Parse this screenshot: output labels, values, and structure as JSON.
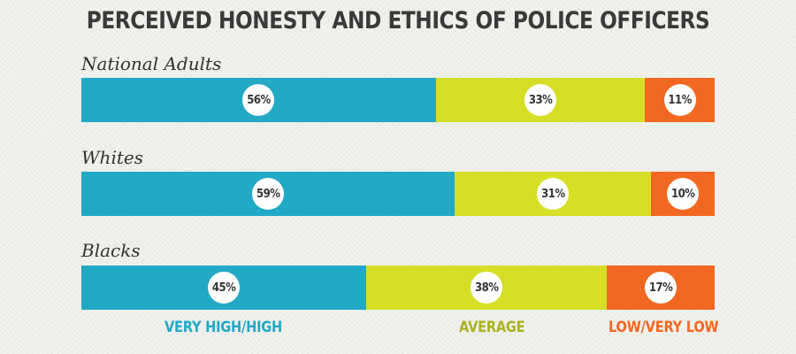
{
  "chart_data": {
    "type": "bar",
    "orientation": "horizontal",
    "stacked": true,
    "title": "PERCEIVED HONESTY AND ETHICS OF POLICE OFFICERS",
    "categories": [
      "National Adults",
      "Whites",
      "Blacks"
    ],
    "series": [
      {
        "name": "VERY HIGH/HIGH",
        "values": [
          56,
          59,
          45
        ],
        "labels": [
          "56%",
          "59%",
          "45%"
        ],
        "color": "#22a9c5"
      },
      {
        "name": "AVERAGE",
        "values": [
          33,
          31,
          38
        ],
        "labels": [
          "33%",
          "31%",
          "38%"
        ],
        "color": "#d5df26"
      },
      {
        "name": "LOW/VERY LOW",
        "values": [
          11,
          10,
          17
        ],
        "labels": [
          "11%",
          "10%",
          "17%"
        ],
        "color": "#f26822"
      }
    ],
    "legend_colors": [
      "#22a9c5",
      "#a9b41e",
      "#f26822"
    ],
    "legend_position": "bottom"
  }
}
